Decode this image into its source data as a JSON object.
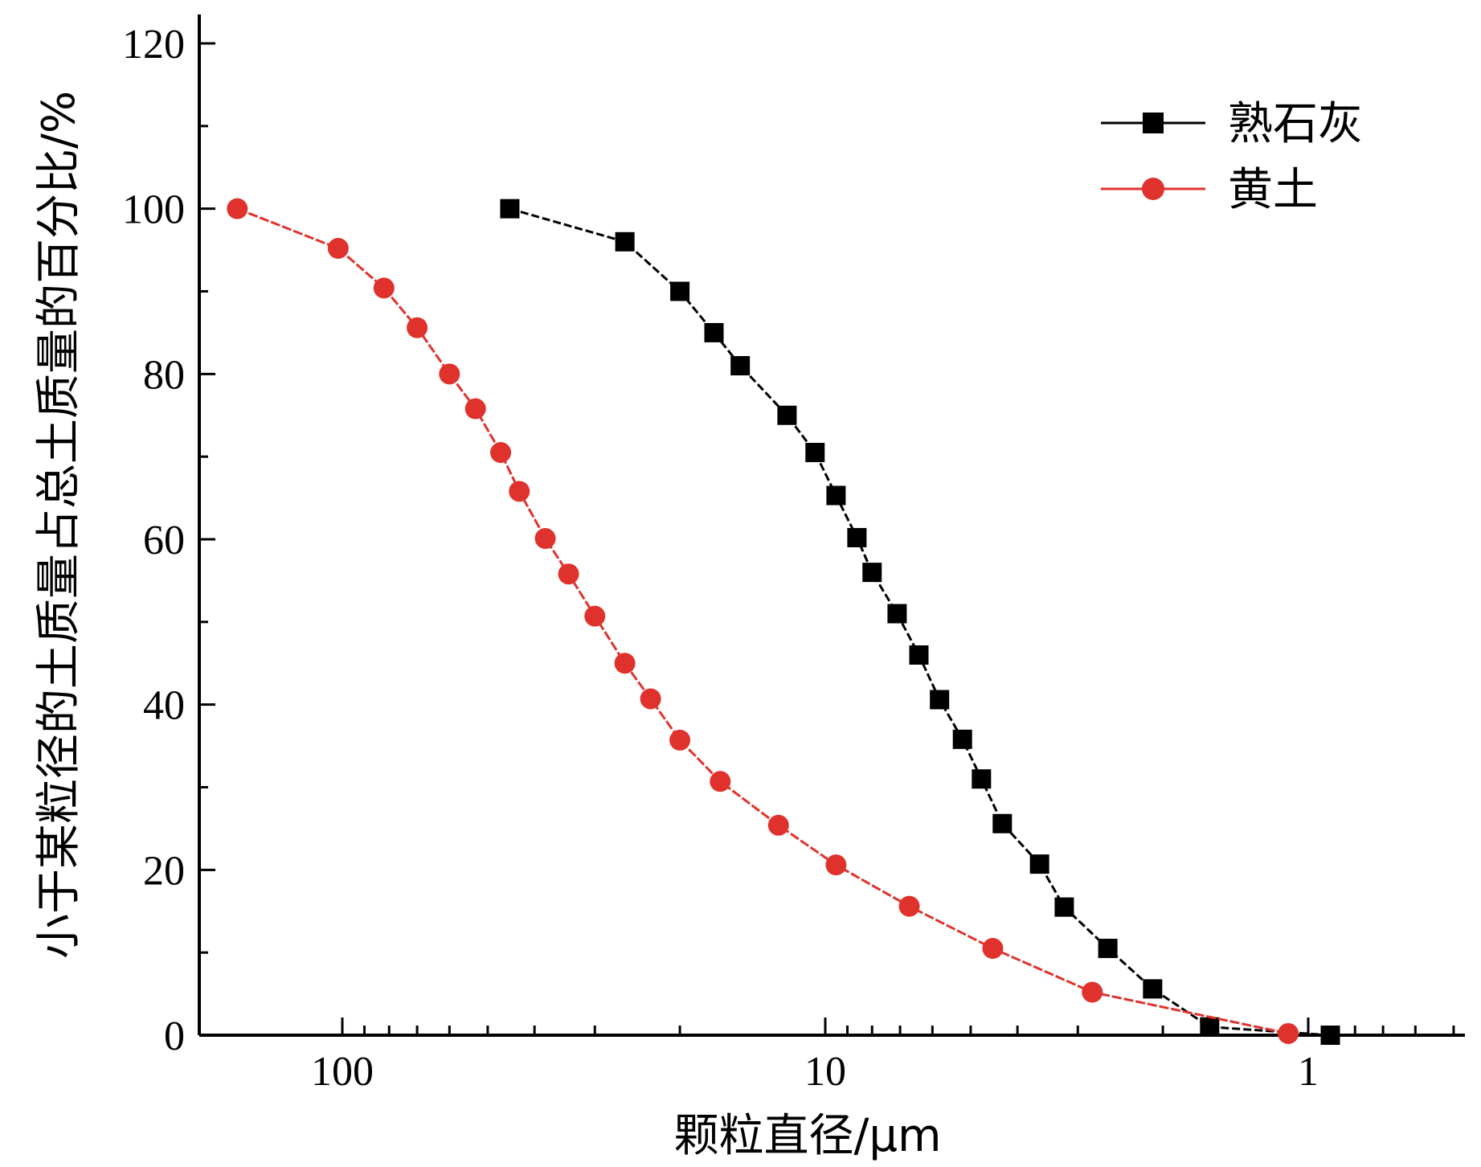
{
  "chart_data": {
    "type": "line",
    "xlabel": "颗粒直径/μm",
    "ylabel": "小于某粒径的土质量占总土质量的百分比/%",
    "x_scale": "log",
    "x_reversed": true,
    "xlim": [
      180,
      0.5
    ],
    "ylim": [
      0,
      120
    ],
    "x_ticks": [
      {
        "value": 100,
        "label": "100"
      },
      {
        "value": 10,
        "label": "10"
      },
      {
        "value": 1,
        "label": "1"
      }
    ],
    "y_ticks": [
      {
        "value": 0,
        "label": "0"
      },
      {
        "value": 20,
        "label": "20"
      },
      {
        "value": 40,
        "label": "40"
      },
      {
        "value": 60,
        "label": "60"
      },
      {
        "value": 80,
        "label": "80"
      },
      {
        "value": 100,
        "label": "100"
      },
      {
        "value": 120,
        "label": "120"
      }
    ],
    "grid": false,
    "legend_position": "top-right",
    "series": [
      {
        "name": "熟石灰",
        "color": "#000000",
        "marker": "square",
        "line_style": "solid-to-dashed",
        "x": [
          45,
          26,
          20,
          17,
          15,
          12,
          10.5,
          9.5,
          8.6,
          8.0,
          7.1,
          6.4,
          5.8,
          5.2,
          4.75,
          4.3,
          3.6,
          3.2,
          2.6,
          2.1,
          1.6,
          0.9
        ],
        "y": [
          100,
          96,
          90,
          85,
          81,
          75,
          70.5,
          65.3,
          60.2,
          56,
          51,
          46,
          40.6,
          35.8,
          31,
          25.6,
          20.7,
          15.5,
          10.5,
          5.6,
          1,
          0
        ]
      },
      {
        "name": "黄土",
        "color": "#e0322c",
        "marker": "circle",
        "line_style": "solid-to-dashed",
        "x": [
          165,
          102,
          82,
          70,
          60,
          53,
          47,
          43,
          38,
          34,
          30,
          26,
          23,
          20,
          16.5,
          12.5,
          9.5,
          6.7,
          4.5,
          2.8,
          1.1
        ],
        "y": [
          100,
          95.2,
          90.4,
          85.6,
          80,
          75.8,
          70.5,
          65.8,
          60.1,
          55.8,
          50.7,
          45,
          40.7,
          35.7,
          30.7,
          25.4,
          20.6,
          15.6,
          10.5,
          5.2,
          0.2
        ]
      }
    ]
  }
}
